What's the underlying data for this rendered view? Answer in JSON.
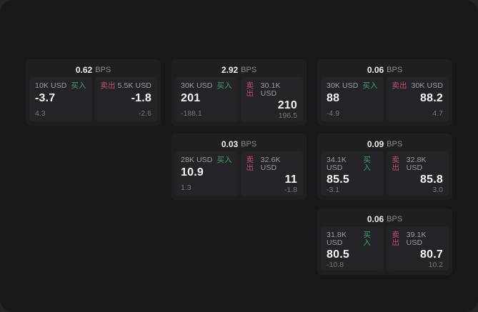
{
  "labels": {
    "bps_unit": "BPS",
    "buy": "买入",
    "sell": "卖出"
  },
  "colors": {
    "window_bg": "#18181a",
    "outer_bg": "#242427",
    "card_bg": "#1f1f21",
    "panel_bg": "#242428",
    "buy_green": "#3fa368",
    "sell_red": "#c74f6a",
    "value_white": "#f5f5f6",
    "muted_gray": "#9d9da2"
  },
  "cards": [
    {
      "bps_value": "0.62",
      "bps_unit": "BPS",
      "buy": {
        "amount": "10K USD",
        "label": "买入",
        "price": "-3.7",
        "change": "4.3"
      },
      "sell": {
        "label": "卖出",
        "amount": "5.5K USD",
        "price": "-1.8",
        "change": "-2.6"
      }
    },
    {
      "bps_value": "2.92",
      "bps_unit": "BPS",
      "buy": {
        "amount": "30K USD",
        "label": "买入",
        "price": "201",
        "change": "-188.1"
      },
      "sell": {
        "label": "卖出",
        "amount": "30.1K USD",
        "price": "210",
        "change": "196.5"
      }
    },
    {
      "bps_value": "0.03",
      "bps_unit": "BPS",
      "buy": {
        "amount": "28K USD",
        "label": "买入",
        "price": "10.9",
        "change": "1.3"
      },
      "sell": {
        "label": "卖出",
        "amount": "32.6K USD",
        "price": "11",
        "change": "-1.8"
      }
    },
    {
      "bps_value": "0.06",
      "bps_unit": "BPS",
      "buy": {
        "amount": "30K USD",
        "label": "买入",
        "price": "88",
        "change": "-4.9"
      },
      "sell": {
        "label": "卖出",
        "amount": "30K USD",
        "price": "88.2",
        "change": "4.7"
      }
    },
    {
      "bps_value": "0.09",
      "bps_unit": "BPS",
      "buy": {
        "amount": "34.1K USD",
        "label": "买入",
        "price": "85.5",
        "change": "-3.1"
      },
      "sell": {
        "label": "卖出",
        "amount": "32.8K USD",
        "price": "85.8",
        "change": "3.0"
      }
    },
    {
      "bps_value": "0.06",
      "bps_unit": "BPS",
      "buy": {
        "amount": "31.8K USD",
        "label": "买入",
        "price": "80.5",
        "change": "-10.8"
      },
      "sell": {
        "label": "卖出",
        "amount": "39.1K USD",
        "price": "80.7",
        "change": "10.2"
      }
    }
  ]
}
